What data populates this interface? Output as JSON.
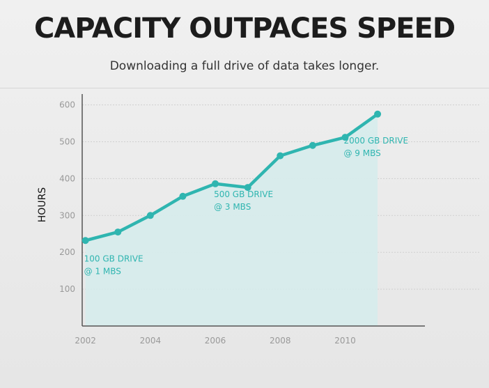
{
  "chart_data": {
    "type": "area",
    "title": "CAPACITY OUTPACES SPEED",
    "subtitle": "Downloading a full drive of data takes longer.",
    "ylabel": "HOURS",
    "xlabel": "",
    "x": [
      2002,
      2003,
      2004,
      2005,
      2006,
      2007,
      2008,
      2009,
      2010,
      2011
    ],
    "series": [
      {
        "values": [
          232,
          255,
          300,
          352,
          386,
          376,
          462,
          490,
          512,
          575
        ]
      }
    ],
    "xticks": [
      2002,
      2004,
      2006,
      2008,
      2010
    ],
    "yticks": [
      100,
      200,
      300,
      400,
      500,
      600
    ],
    "xlim": [
      2001.9,
      2012.2
    ],
    "ylim": [
      0,
      620
    ],
    "grid": true,
    "colors": {
      "line": "#2fb5b0",
      "fill": "#d6ecec",
      "grid": "#cfcfcf"
    },
    "annotations": [
      {
        "x": 2002,
        "y": 175,
        "line1": "100 GB DRIVE",
        "line2": "@ 1 MBS"
      },
      {
        "x": 2006,
        "y": 350,
        "line1": "500 GB DRIVE",
        "line2": "@ 3 MBS"
      },
      {
        "x": 2010,
        "y": 495,
        "line1": "2000 GB DRIVE",
        "line2": "@ 9 MBS"
      }
    ]
  }
}
